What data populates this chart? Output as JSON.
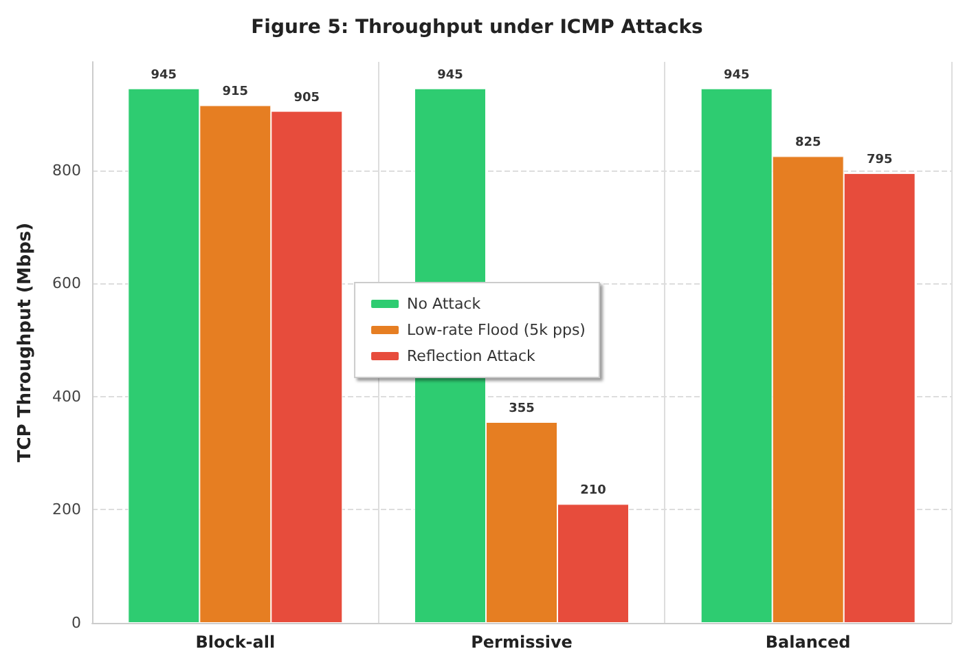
{
  "chart_data": {
    "type": "bar",
    "title": "Figure 5: Throughput under ICMP Attacks",
    "ylabel": "TCP Throughput (Mbps)",
    "categories": [
      "Block-all",
      "Permissive",
      "Balanced"
    ],
    "series": [
      {
        "name": "No Attack",
        "color": "#2ecc71",
        "values": [
          945,
          945,
          945
        ]
      },
      {
        "name": "Low-rate Flood (5k pps)",
        "color": "#e67e22",
        "values": [
          915,
          355,
          825
        ]
      },
      {
        "name": "Reflection Attack",
        "color": "#e74c3c",
        "values": [
          905,
          210,
          795
        ]
      }
    ],
    "ylim": [
      0,
      992
    ],
    "yticks": [
      0,
      200,
      400,
      600,
      800
    ],
    "grid": true,
    "legend": "center",
    "data_labels": true
  }
}
